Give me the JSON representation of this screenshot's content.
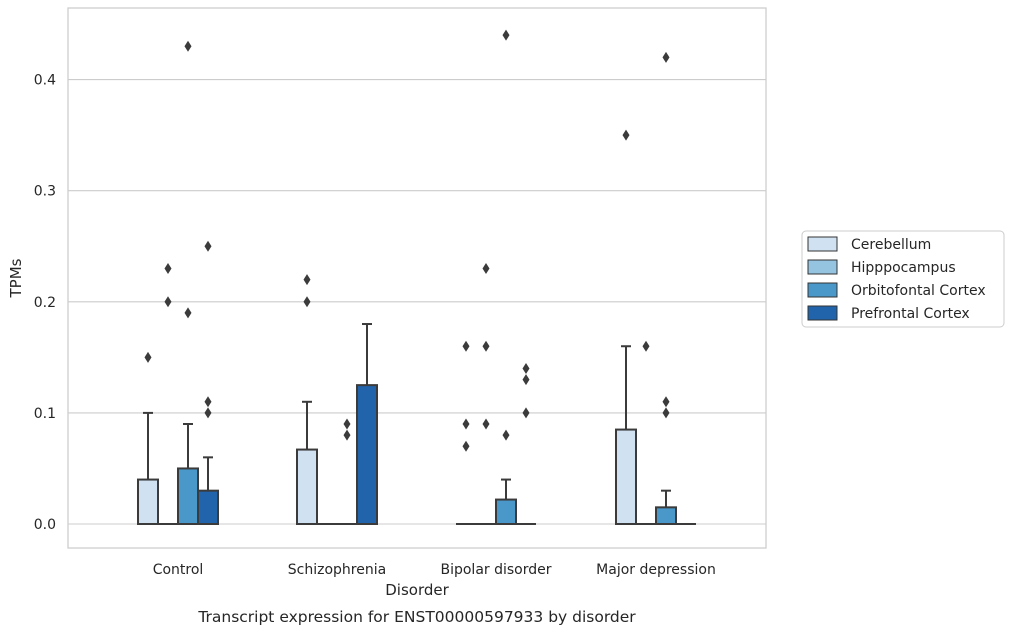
{
  "chart_data": {
    "type": "box",
    "title": "Transcript expression for ENST00000597933 by disorder",
    "xlabel": "Disorder",
    "ylabel": "TPMs",
    "ylim": [
      -0.022,
      0.465
    ],
    "yticks": [
      0.0,
      0.1,
      0.2,
      0.3,
      0.4
    ],
    "ytick_labels": [
      "0.0",
      "0.1",
      "0.2",
      "0.3",
      "0.4"
    ],
    "grid": "horizontal",
    "legend_position": "right",
    "categories": [
      "Control",
      "Schizophrenia",
      "Bipolar disorder",
      "Major depression"
    ],
    "series": [
      {
        "name": "Cerebellum",
        "color": "#d0e1f2",
        "boxes": [
          {
            "category": "Control",
            "q1": 0.0,
            "median": 0.0,
            "q3": 0.04,
            "whisker_low": 0.0,
            "whisker_high": 0.1,
            "outliers": [
              0.15
            ]
          },
          {
            "category": "Schizophrenia",
            "q1": 0.0,
            "median": 0.0,
            "q3": 0.067,
            "whisker_low": 0.0,
            "whisker_high": 0.11,
            "outliers": [
              0.2,
              0.22
            ]
          },
          {
            "category": "Bipolar disorder",
            "q1": 0.0,
            "median": 0.0,
            "q3": 0.0,
            "whisker_low": 0.0,
            "whisker_high": 0.0,
            "outliers": [
              0.07,
              0.09,
              0.16
            ]
          },
          {
            "category": "Major depression",
            "q1": 0.0,
            "median": 0.0,
            "q3": 0.085,
            "whisker_low": 0.0,
            "whisker_high": 0.16,
            "outliers": [
              0.35
            ]
          }
        ]
      },
      {
        "name": "Hipppocampus",
        "color": "#94c4df",
        "boxes": [
          {
            "category": "Control",
            "q1": 0.0,
            "median": 0.0,
            "q3": 0.0,
            "whisker_low": 0.0,
            "whisker_high": 0.0,
            "outliers": [
              0.2,
              0.23
            ]
          },
          {
            "category": "Schizophrenia",
            "q1": 0.0,
            "median": 0.0,
            "q3": 0.0,
            "whisker_low": 0.0,
            "whisker_high": 0.0,
            "outliers": []
          },
          {
            "category": "Bipolar disorder",
            "q1": 0.0,
            "median": 0.0,
            "q3": 0.0,
            "whisker_low": 0.0,
            "whisker_high": 0.0,
            "outliers": [
              0.09,
              0.16,
              0.23
            ]
          },
          {
            "category": "Major depression",
            "q1": 0.0,
            "median": 0.0,
            "q3": 0.0,
            "whisker_low": 0.0,
            "whisker_high": 0.0,
            "outliers": [
              0.16
            ]
          }
        ]
      },
      {
        "name": "Orbitofontal Cortex",
        "color": "#4a98c9",
        "boxes": [
          {
            "category": "Control",
            "q1": 0.0,
            "median": 0.0,
            "q3": 0.05,
            "whisker_low": 0.0,
            "whisker_high": 0.09,
            "outliers": [
              0.19,
              0.43
            ]
          },
          {
            "category": "Schizophrenia",
            "q1": 0.0,
            "median": 0.0,
            "q3": 0.0,
            "whisker_low": 0.0,
            "whisker_high": 0.0,
            "outliers": [
              0.08,
              0.09
            ]
          },
          {
            "category": "Bipolar disorder",
            "q1": 0.0,
            "median": 0.0,
            "q3": 0.022,
            "whisker_low": 0.0,
            "whisker_high": 0.04,
            "outliers": [
              0.08,
              0.44
            ]
          },
          {
            "category": "Major depression",
            "q1": 0.0,
            "median": 0.0,
            "q3": 0.015,
            "whisker_low": 0.0,
            "whisker_high": 0.03,
            "outliers": [
              0.1,
              0.11,
              0.42
            ]
          }
        ]
      },
      {
        "name": "Prefrontal Cortex",
        "color": "#2164ab",
        "boxes": [
          {
            "category": "Control",
            "q1": 0.0,
            "median": 0.0,
            "q3": 0.03,
            "whisker_low": 0.0,
            "whisker_high": 0.06,
            "outliers": [
              0.1,
              0.11,
              0.25
            ]
          },
          {
            "category": "Schizophrenia",
            "q1": 0.0,
            "median": 0.0,
            "q3": 0.125,
            "whisker_low": 0.0,
            "whisker_high": 0.18,
            "outliers": []
          },
          {
            "category": "Bipolar disorder",
            "q1": 0.0,
            "median": 0.0,
            "q3": 0.0,
            "whisker_low": 0.0,
            "whisker_high": 0.0,
            "outliers": [
              0.1,
              0.13,
              0.14
            ]
          },
          {
            "category": "Major depression",
            "q1": 0.0,
            "median": 0.0,
            "q3": 0.0,
            "whisker_low": 0.0,
            "whisker_high": 0.0,
            "outliers": []
          }
        ]
      }
    ]
  }
}
